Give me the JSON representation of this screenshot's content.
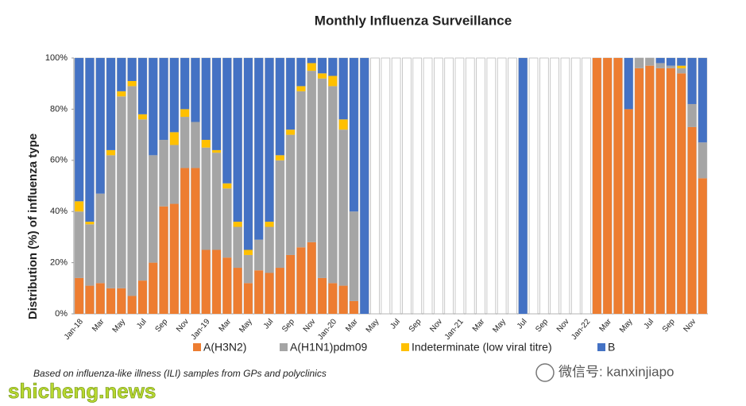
{
  "chart_data": {
    "type": "stacked_bar",
    "title": "Monthly Influenza Surveillance",
    "y_label": "Distribution (%) of influenza  type",
    "categories": [
      "Jan-18",
      null,
      "Mar",
      null,
      "May",
      null,
      "Jul",
      null,
      "Sep",
      null,
      "Nov",
      null,
      "Jan-19",
      null,
      "Mar",
      null,
      "May",
      null,
      "Jul",
      null,
      "Sep",
      null,
      "Nov",
      null,
      "Jan-20",
      null,
      "Mar",
      null,
      "May",
      null,
      "Jul",
      null,
      "Sep",
      null,
      "Nov",
      null,
      "Jan-21",
      null,
      "Mar",
      null,
      "May",
      null,
      "Jul",
      null,
      "Sep",
      null,
      "Nov",
      null,
      "Jan-22",
      null,
      "Mar",
      null,
      "May",
      null,
      "Jul",
      null,
      "Sep",
      null,
      "Nov",
      null
    ],
    "series": [
      {
        "name": "A(H3N2)",
        "color": "#ed7d31",
        "values": [
          14,
          11,
          12,
          10,
          10,
          7,
          13,
          20,
          42,
          43,
          57,
          57,
          25,
          25,
          22,
          18,
          12,
          17,
          16,
          18,
          23,
          26,
          28,
          14,
          12,
          11,
          5,
          0,
          0,
          0,
          0,
          0,
          0,
          0,
          0,
          0,
          0,
          0,
          0,
          0,
          0,
          0,
          0,
          0,
          0,
          0,
          0,
          0,
          0,
          100,
          100,
          100,
          80,
          96,
          97,
          96,
          96,
          94,
          73,
          53
        ]
      },
      {
        "name": "A(H1N1)pdm09",
        "color": "#a5a5a5",
        "values": [
          26,
          24,
          35,
          52,
          75,
          82,
          63,
          42,
          26,
          23,
          20,
          18,
          40,
          38,
          27,
          16,
          11,
          12,
          18,
          42,
          47,
          61,
          67,
          78,
          77,
          61,
          35,
          0,
          0,
          0,
          0,
          0,
          0,
          0,
          0,
          0,
          0,
          0,
          0,
          0,
          0,
          0,
          0,
          0,
          0,
          0,
          0,
          0,
          0,
          0,
          0,
          0,
          0,
          4,
          3,
          2,
          1,
          2,
          9,
          14
        ]
      },
      {
        "name": "Indeterminate (low viral titre)",
        "color": "#ffc000",
        "values": [
          4,
          1,
          0,
          2,
          2,
          2,
          2,
          0,
          0,
          5,
          3,
          0,
          3,
          1,
          2,
          2,
          2,
          0,
          2,
          2,
          2,
          2,
          3,
          2,
          4,
          4,
          0,
          0,
          0,
          0,
          0,
          0,
          0,
          0,
          0,
          0,
          0,
          0,
          0,
          0,
          0,
          0,
          0,
          0,
          0,
          0,
          0,
          0,
          0,
          0,
          0,
          0,
          0,
          0,
          0,
          0,
          0,
          1,
          0,
          0
        ]
      },
      {
        "name": "B",
        "color": "#4472c4",
        "values": [
          56,
          64,
          53,
          36,
          13,
          9,
          22,
          38,
          32,
          29,
          20,
          25,
          32,
          36,
          49,
          64,
          75,
          71,
          64,
          38,
          28,
          11,
          2,
          6,
          7,
          24,
          60,
          100,
          0,
          0,
          0,
          0,
          0,
          0,
          0,
          0,
          0,
          0,
          0,
          0,
          0,
          0,
          100,
          0,
          0,
          0,
          0,
          0,
          0,
          0,
          0,
          0,
          20,
          0,
          0,
          2,
          3,
          3,
          18,
          33
        ]
      }
    ],
    "ylim": [
      0,
      100
    ],
    "yticks": [
      {
        "value": 0,
        "label": "0%"
      },
      {
        "value": 20,
        "label": "20%"
      },
      {
        "value": 40,
        "label": "40%"
      },
      {
        "value": 60,
        "label": "60%"
      },
      {
        "value": 80,
        "label": "80%"
      },
      {
        "value": 100,
        "label": "100%"
      }
    ],
    "legend": "bottom",
    "footnote": "Based on influenza-like illness (ILI) samples from GPs and polyclinics"
  },
  "watermarks": {
    "site": "shicheng.news",
    "wechat": "微信号: kanxinjiapo"
  }
}
